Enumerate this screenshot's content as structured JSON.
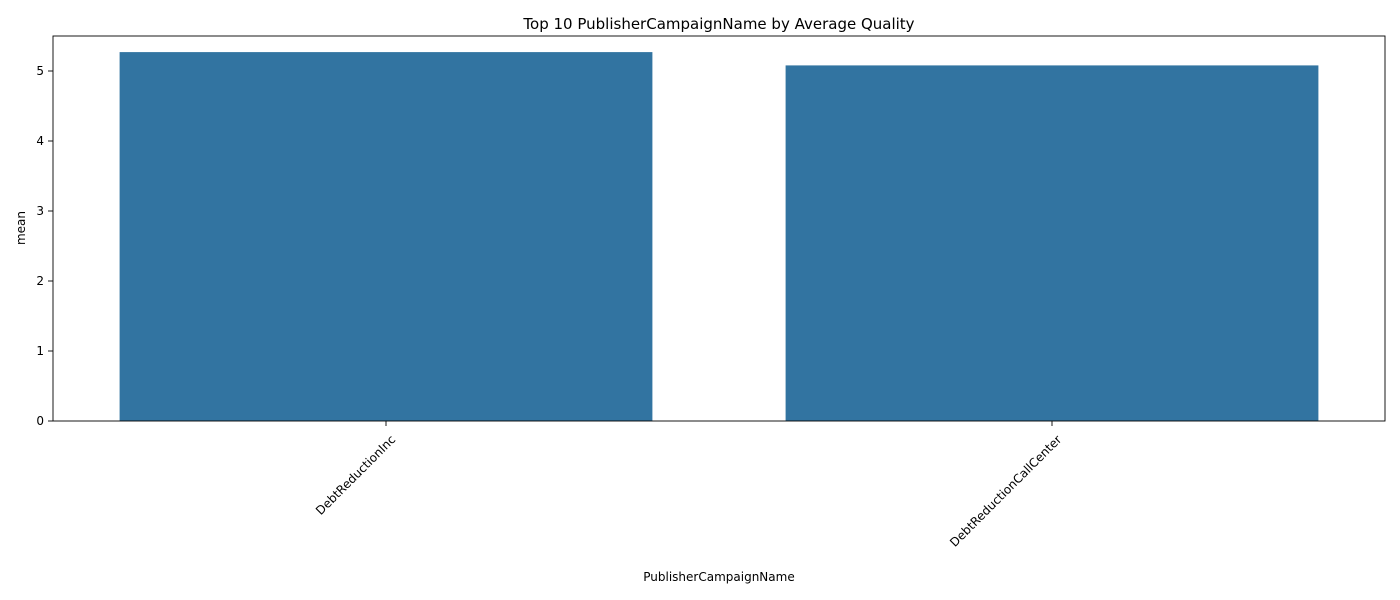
{
  "chart_data": {
    "type": "bar",
    "title": "Top 10 PublisherCampaignName by Average Quality",
    "xlabel": "PublisherCampaignName",
    "ylabel": "mean",
    "categories": [
      "DebtReductionInc",
      "DebtReductionCallCenter"
    ],
    "values": [
      5.27,
      5.08
    ],
    "ylim": [
      0,
      5.5
    ],
    "yticks": [
      0,
      1,
      2,
      3,
      4,
      5
    ],
    "grid": false,
    "legend": "none",
    "bar_color": "#3274a1",
    "x_tick_rotation": 45
  }
}
